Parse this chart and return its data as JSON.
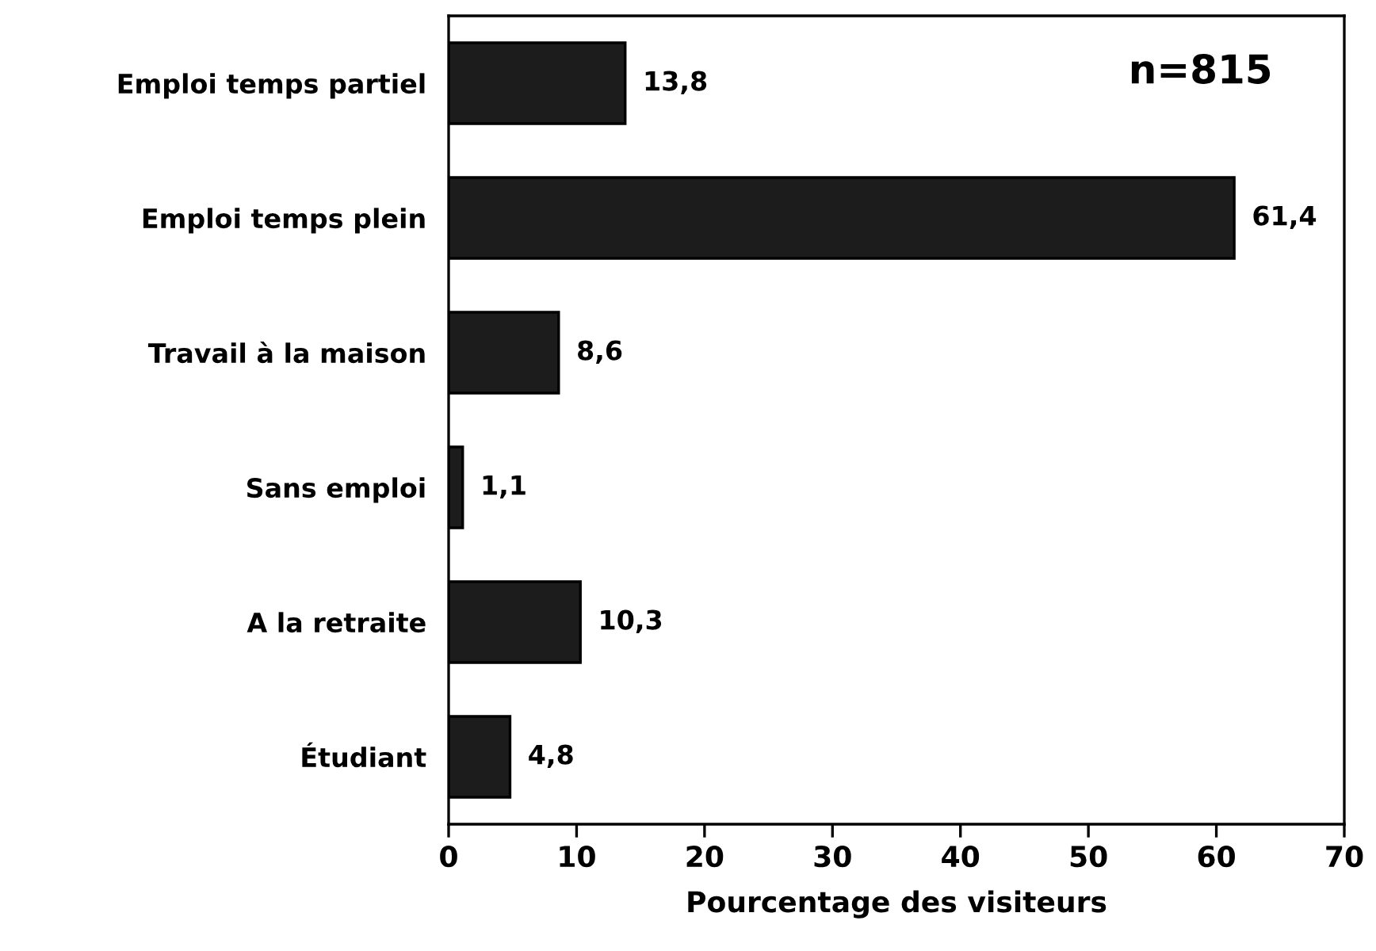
{
  "chart_data": {
    "type": "bar",
    "orientation": "horizontal",
    "xlabel": "Pourcentage des visiteurs",
    "categories": [
      "Emploi temps partiel",
      "Emploi temps plein",
      "Travail à la maison",
      "Sans emploi",
      "A la retraite",
      "Étudiant"
    ],
    "values": [
      13.8,
      61.4,
      8.6,
      1.1,
      10.3,
      4.8
    ],
    "value_labels": [
      "13,8",
      "61,4",
      "8,6",
      "1,1",
      "10,3",
      "4,8"
    ],
    "color": "#1c1c1c",
    "xlim": [
      0,
      70
    ],
    "xticks": [
      0,
      10,
      20,
      30,
      40,
      50,
      60,
      70
    ],
    "annotations": [
      "n=815"
    ],
    "grid": false
  }
}
